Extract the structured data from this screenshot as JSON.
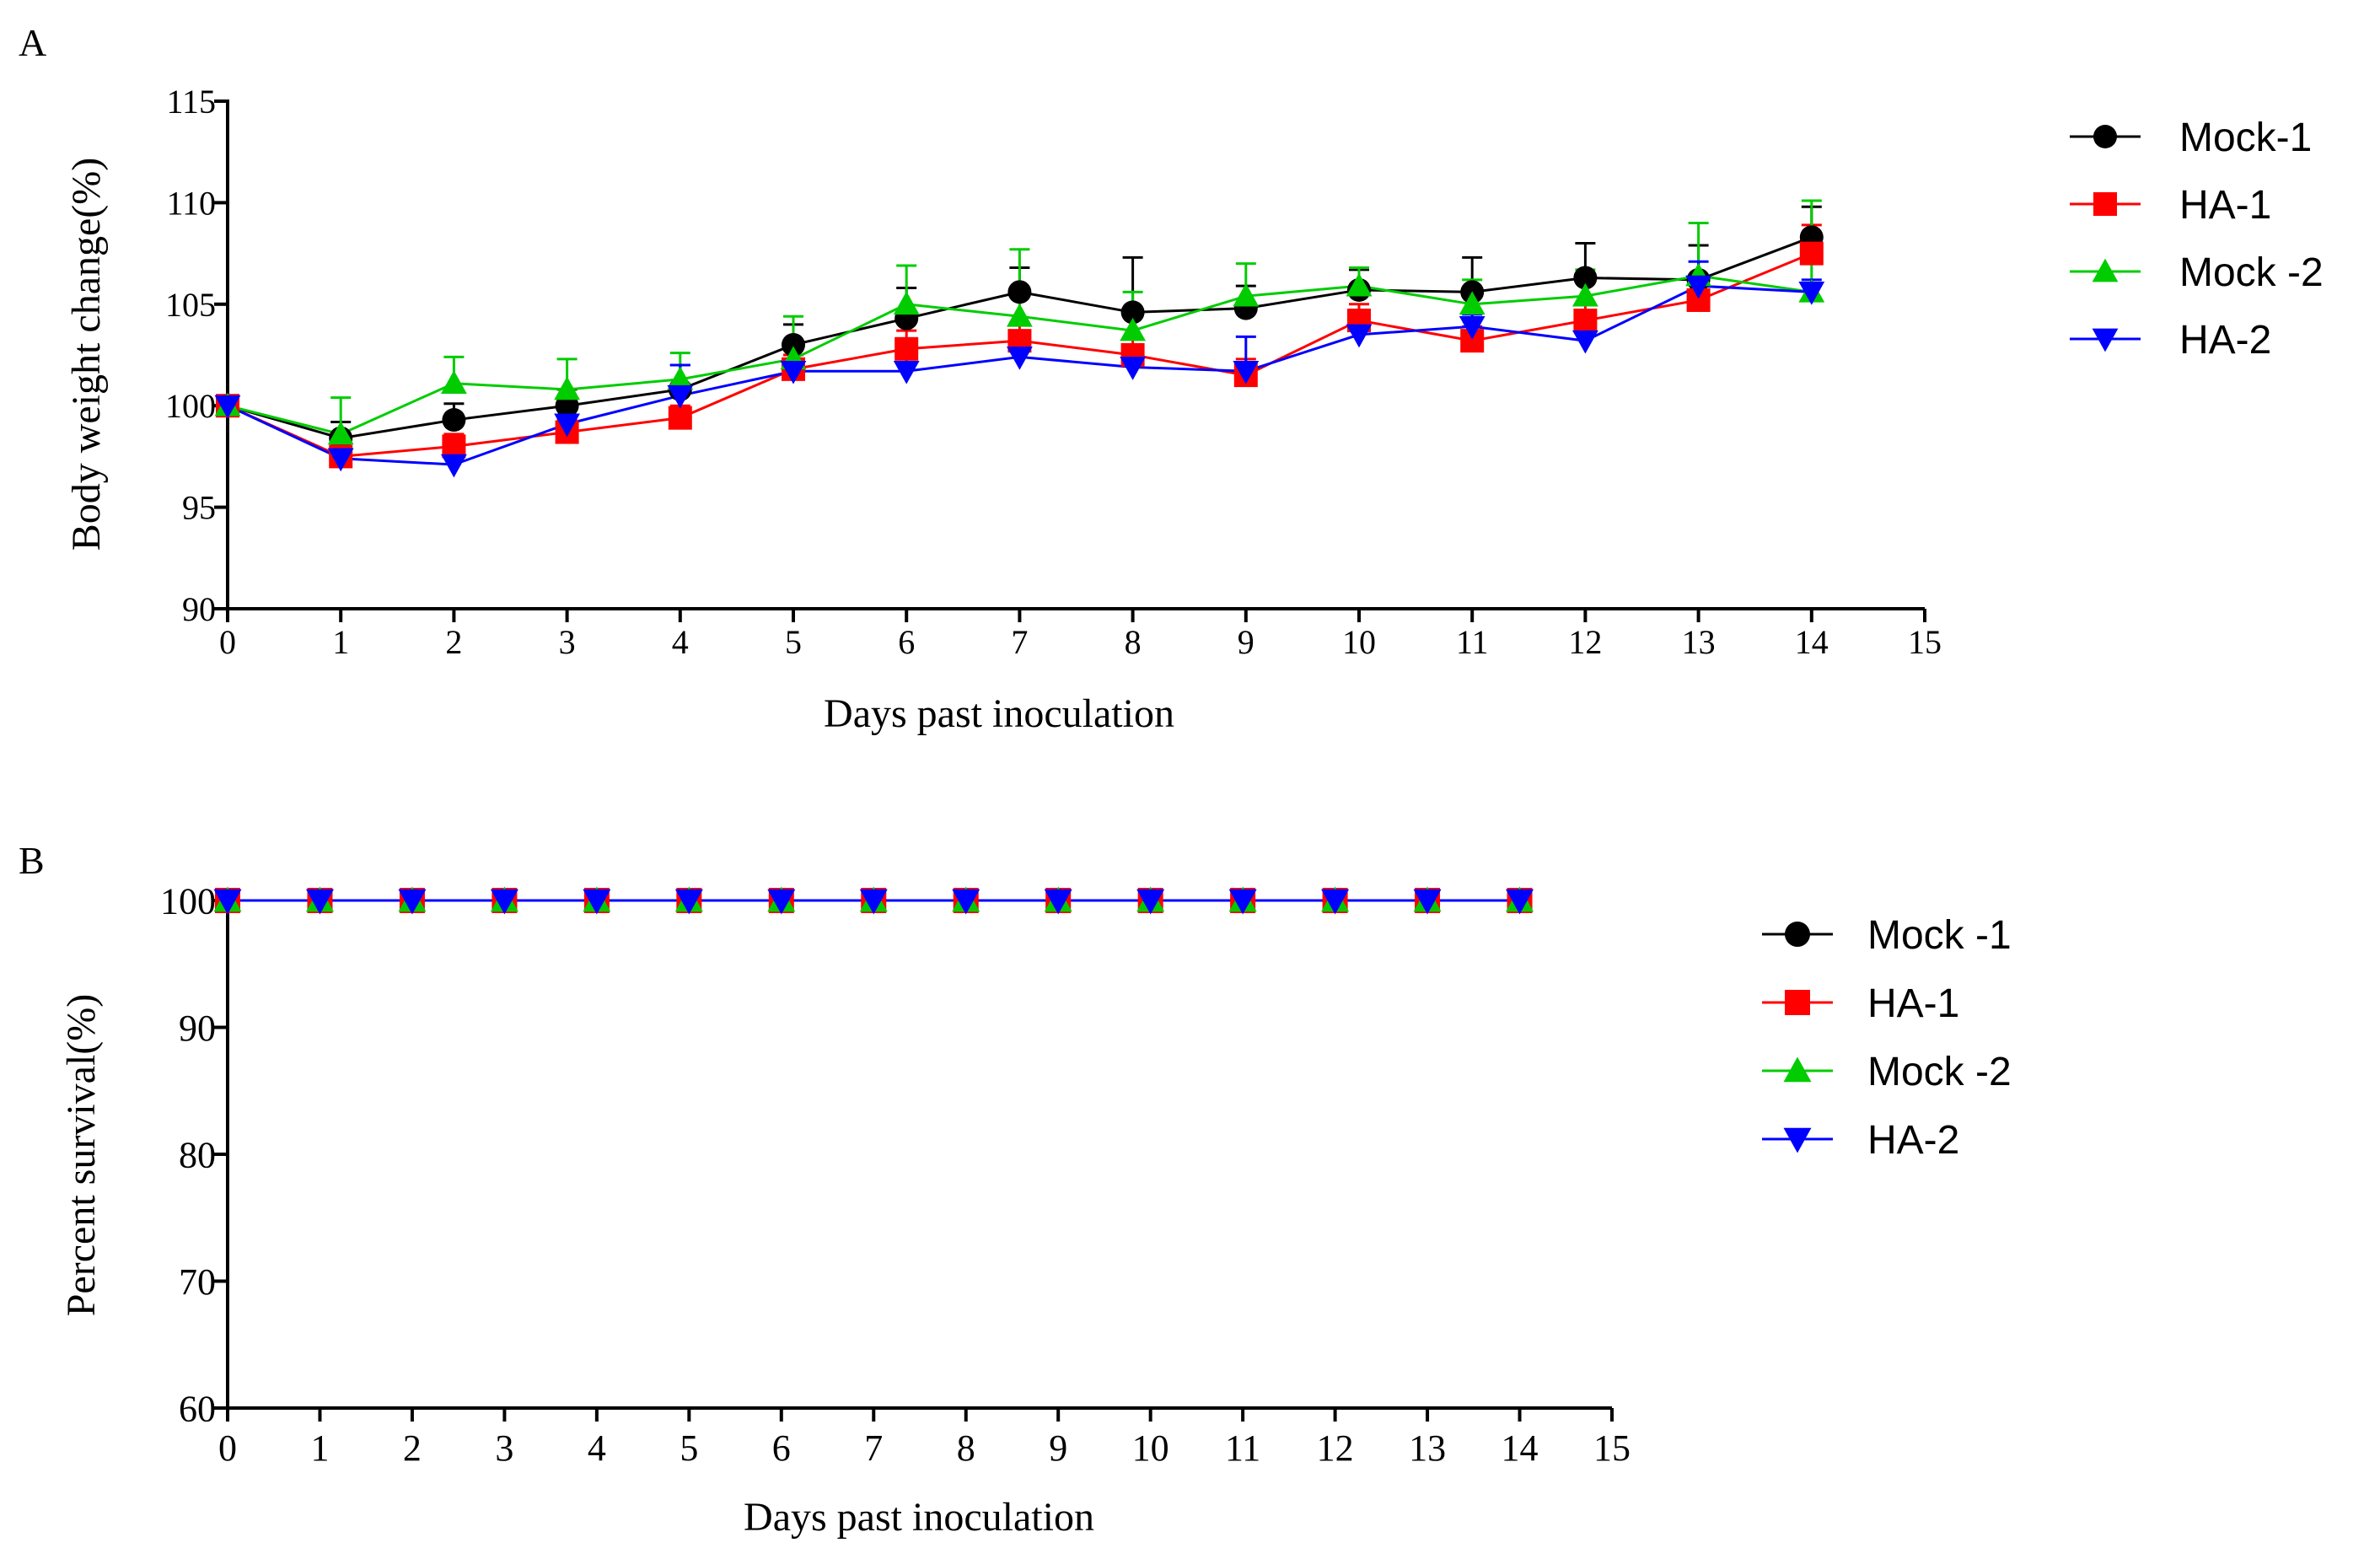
{
  "figure": {
    "panel_a_label": "A",
    "panel_b_label": "B"
  },
  "chart_data": [
    {
      "type": "line",
      "panel": "A",
      "title": "",
      "xlabel": "Days past inoculation",
      "ylabel": "Body weight change(%)",
      "xlim": [
        0,
        15
      ],
      "ylim": [
        90,
        115
      ],
      "xticks": [
        0,
        1,
        2,
        3,
        4,
        5,
        6,
        7,
        8,
        9,
        10,
        11,
        12,
        13,
        14,
        15
      ],
      "yticks": [
        90,
        95,
        100,
        105,
        110,
        115
      ],
      "x": [
        0,
        1,
        2,
        3,
        4,
        5,
        6,
        7,
        8,
        9,
        10,
        11,
        12,
        13,
        14
      ],
      "grid": false,
      "legend_position": "right",
      "series": [
        {
          "name": "Mock-1",
          "color": "#000000",
          "marker": "circle",
          "values": [
            100,
            98.4,
            99.3,
            100,
            100.8,
            103,
            104.3,
            105.6,
            104.6,
            104.8,
            105.7,
            105.6,
            106.3,
            106.2,
            108.3
          ],
          "error": [
            0,
            0.8,
            0.8,
            0.8,
            1.2,
            1.0,
            1.5,
            1.2,
            2.7,
            1.1,
            1.0,
            1.7,
            1.7,
            1.7,
            1.5
          ]
        },
        {
          "name": "HA-1",
          "color": "#ff0000",
          "marker": "square",
          "values": [
            100,
            97.5,
            98,
            98.7,
            99.4,
            101.8,
            102.8,
            103.2,
            102.5,
            101.5,
            104.2,
            103.2,
            104.2,
            105.2,
            107.5
          ],
          "error": [
            0,
            0.5,
            0.6,
            0.6,
            0.6,
            0.7,
            0.9,
            0.9,
            0.9,
            0.8,
            0.8,
            0.7,
            0.8,
            0.9,
            1.4
          ]
        },
        {
          "name": "Mock -2",
          "color": "#00cc00",
          "marker": "triangle-up",
          "values": [
            100,
            98.6,
            101.1,
            100.8,
            101.3,
            102.3,
            105,
            104.4,
            103.7,
            105.4,
            105.9,
            105,
            105.4,
            106.4,
            105.6
          ],
          "error": [
            0,
            1.8,
            1.3,
            1.5,
            1.3,
            2.1,
            1.9,
            3.3,
            1.9,
            1.6,
            0.9,
            1.2,
            1.3,
            2.6,
            4.5
          ]
        },
        {
          "name": "HA-2",
          "color": "#0000ff",
          "marker": "triangle-down",
          "values": [
            100,
            97.4,
            97.1,
            99.1,
            100.5,
            101.7,
            101.7,
            102.4,
            101.9,
            101.7,
            103.5,
            103.9,
            103.2,
            105.9,
            105.6
          ],
          "error": [
            0,
            0.5,
            0.8,
            0.8,
            1.5,
            0.6,
            0.6,
            0.8,
            0.7,
            1.7,
            0.6,
            0.6,
            0.6,
            1.2,
            0.6
          ]
        }
      ]
    },
    {
      "type": "line",
      "panel": "B",
      "title": "",
      "xlabel": "Days past inoculation",
      "ylabel": "Percent survival(%)",
      "xlim": [
        0,
        15
      ],
      "ylim": [
        60,
        100
      ],
      "xticks": [
        0,
        1,
        2,
        3,
        4,
        5,
        6,
        7,
        8,
        9,
        10,
        11,
        12,
        13,
        14,
        15
      ],
      "yticks": [
        60,
        70,
        80,
        90,
        100
      ],
      "x": [
        0,
        1,
        2,
        3,
        4,
        5,
        6,
        7,
        8,
        9,
        10,
        11,
        12,
        13,
        14
      ],
      "grid": false,
      "legend_position": "right",
      "series": [
        {
          "name": "Mock -1",
          "color": "#000000",
          "marker": "circle",
          "values": [
            100,
            100,
            100,
            100,
            100,
            100,
            100,
            100,
            100,
            100,
            100,
            100,
            100,
            100,
            100
          ]
        },
        {
          "name": "HA-1",
          "color": "#ff0000",
          "marker": "square",
          "values": [
            100,
            100,
            100,
            100,
            100,
            100,
            100,
            100,
            100,
            100,
            100,
            100,
            100,
            100,
            100
          ]
        },
        {
          "name": "Mock -2",
          "color": "#00cc00",
          "marker": "triangle-up",
          "values": [
            100,
            100,
            100,
            100,
            100,
            100,
            100,
            100,
            100,
            100,
            100,
            100,
            100,
            100,
            100
          ]
        },
        {
          "name": "HA-2",
          "color": "#0000ff",
          "marker": "triangle-down",
          "values": [
            100,
            100,
            100,
            100,
            100,
            100,
            100,
            100,
            100,
            100,
            100,
            100,
            100,
            100,
            100
          ]
        }
      ]
    }
  ]
}
